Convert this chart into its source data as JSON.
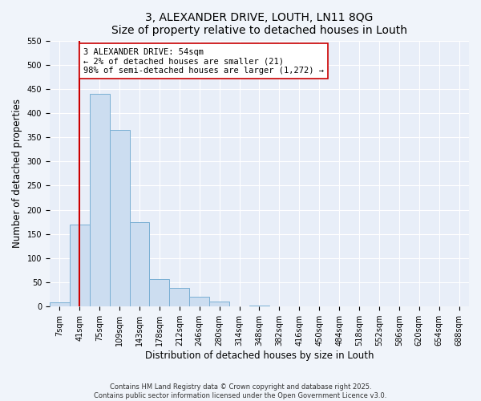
{
  "title": "3, ALEXANDER DRIVE, LOUTH, LN11 8QG",
  "subtitle": "Size of property relative to detached houses in Louth",
  "xlabel": "Distribution of detached houses by size in Louth",
  "ylabel": "Number of detached properties",
  "bar_labels": [
    "7sqm",
    "41sqm",
    "75sqm",
    "109sqm",
    "143sqm",
    "178sqm",
    "212sqm",
    "246sqm",
    "280sqm",
    "314sqm",
    "348sqm",
    "382sqm",
    "416sqm",
    "450sqm",
    "484sqm",
    "518sqm",
    "552sqm",
    "586sqm",
    "620sqm",
    "654sqm",
    "688sqm"
  ],
  "bar_heights": [
    8,
    170,
    440,
    365,
    175,
    57,
    39,
    21,
    11,
    0,
    2,
    0,
    0,
    0,
    0,
    0,
    0,
    0,
    0,
    0,
    0
  ],
  "bar_color": "#ccddf0",
  "bar_edge_color": "#7aafd4",
  "ylim": [
    0,
    550
  ],
  "yticks": [
    0,
    50,
    100,
    150,
    200,
    250,
    300,
    350,
    400,
    450,
    500,
    550
  ],
  "vline_x": 1,
  "vline_color": "#cc0000",
  "annotation_text": "3 ALEXANDER DRIVE: 54sqm\n← 2% of detached houses are smaller (21)\n98% of semi-detached houses are larger (1,272) →",
  "annotation_box_facecolor": "#ffffff",
  "annotation_box_edge": "#cc0000",
  "bg_color": "#f0f4fa",
  "plot_bg": "#e8eef8",
  "grid_color": "#ffffff",
  "footnote1": "Contains HM Land Registry data © Crown copyright and database right 2025.",
  "footnote2": "Contains public sector information licensed under the Open Government Licence v3.0.",
  "title_fontsize": 10,
  "label_fontsize": 8.5,
  "tick_fontsize": 7,
  "annot_fontsize": 7.5
}
